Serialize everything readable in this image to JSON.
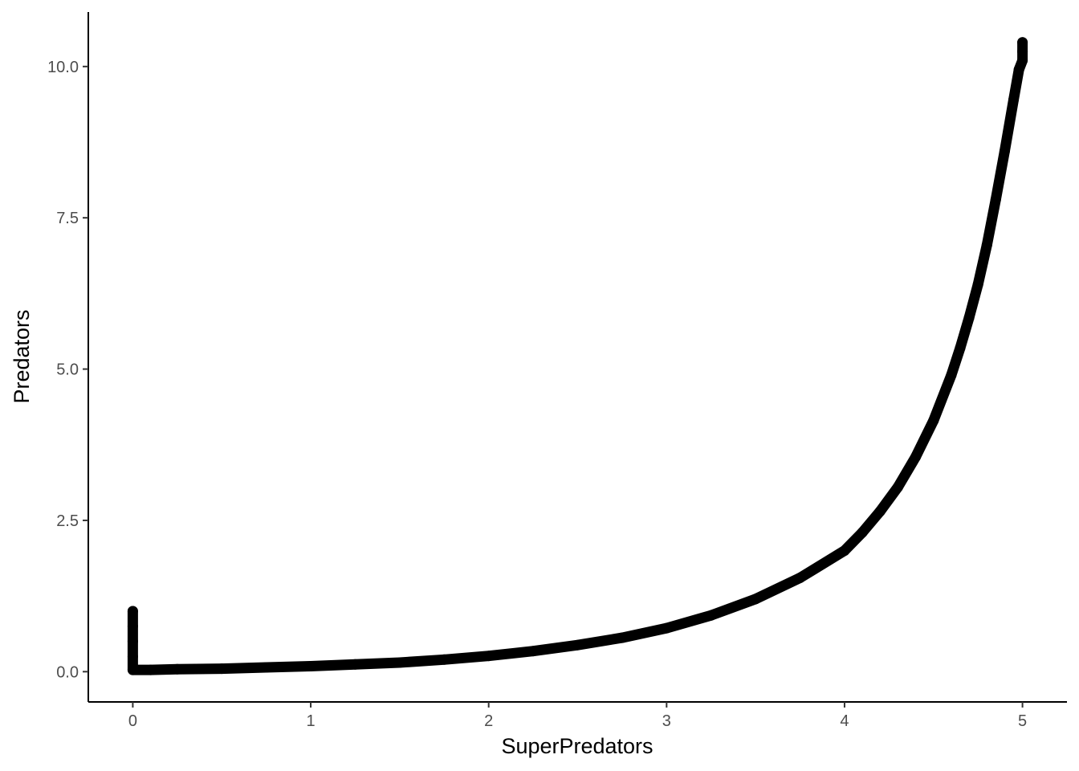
{
  "chart_data": {
    "type": "scatter",
    "xlabel": "SuperPredators",
    "ylabel": "Predators",
    "xlim": [
      -0.25,
      5.25
    ],
    "ylim": [
      -0.5,
      10.9
    ],
    "x_ticks": [
      0,
      1,
      2,
      3,
      4,
      5
    ],
    "x_tick_labels": [
      "0",
      "1",
      "2",
      "3",
      "4",
      "5"
    ],
    "y_ticks": [
      0,
      2.5,
      5,
      7.5,
      10
    ],
    "y_tick_labels": [
      "0.0",
      "2.5",
      "5.0",
      "7.5",
      "10.0"
    ],
    "grid": false,
    "legend": "none",
    "series": [
      {
        "color": "#000000",
        "x": [
          0,
          0,
          0,
          0,
          0,
          0.1,
          0.25,
          0.5,
          0.75,
          1.0,
          1.25,
          1.5,
          1.75,
          2.0,
          2.25,
          2.5,
          2.75,
          3.0,
          3.25,
          3.5,
          3.75,
          4.0,
          4.1,
          4.2,
          4.3,
          4.4,
          4.5,
          4.6,
          4.65,
          4.7,
          4.75,
          4.8,
          4.85,
          4.9,
          4.95,
          4.98,
          5.0,
          5.0,
          5.0
        ],
        "y": [
          1.0,
          0.75,
          0.5,
          0.25,
          0.03,
          0.03,
          0.04,
          0.05,
          0.07,
          0.09,
          0.12,
          0.15,
          0.2,
          0.26,
          0.34,
          0.44,
          0.56,
          0.72,
          0.93,
          1.2,
          1.55,
          2.0,
          2.3,
          2.65,
          3.05,
          3.55,
          4.15,
          4.9,
          5.35,
          5.85,
          6.4,
          7.05,
          7.8,
          8.6,
          9.45,
          9.95,
          10.1,
          10.25,
          10.4
        ]
      }
    ]
  }
}
